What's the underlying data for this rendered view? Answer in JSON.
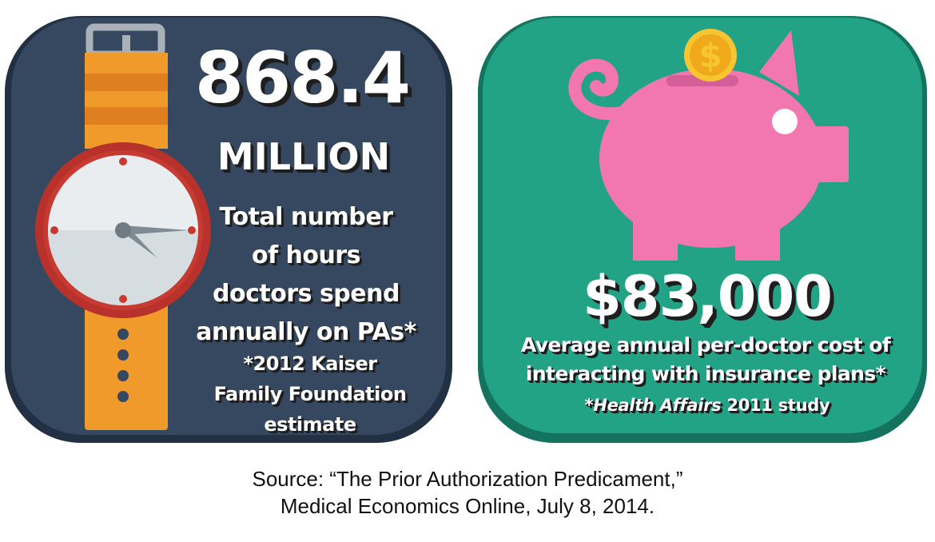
{
  "colors": {
    "left_panel": "#35485f",
    "right_panel": "#22a385",
    "watch_strap": "#ef9a2a",
    "watch_bezel": "#c63a31",
    "piggy_bank": "#f276b0",
    "coin": "#f7c531"
  },
  "icons": {
    "left": "wristwatch-icon",
    "right": "piggy-bank-icon",
    "coin": "dollar-coin-icon"
  },
  "left_card": {
    "number": "868.4",
    "unit": "MILLION",
    "description_lines": [
      "Total number",
      "of hours",
      "doctors spend",
      "annually on PAs*"
    ],
    "footnote_lines": [
      "*2012 Kaiser",
      "Family Foundation",
      "estimate"
    ]
  },
  "right_card": {
    "amount": "$83,000",
    "description_lines": [
      "Average annual per-doctor cost of",
      "interacting with insurance plans*"
    ],
    "footnote": {
      "prefix": "*",
      "italic": "Health Affairs",
      "suffix": " 2011 study"
    }
  },
  "source_lines": [
    "Source: “The Prior Authorization Predicament,”",
    "Medical Economics Online, July 8, 2014."
  ]
}
